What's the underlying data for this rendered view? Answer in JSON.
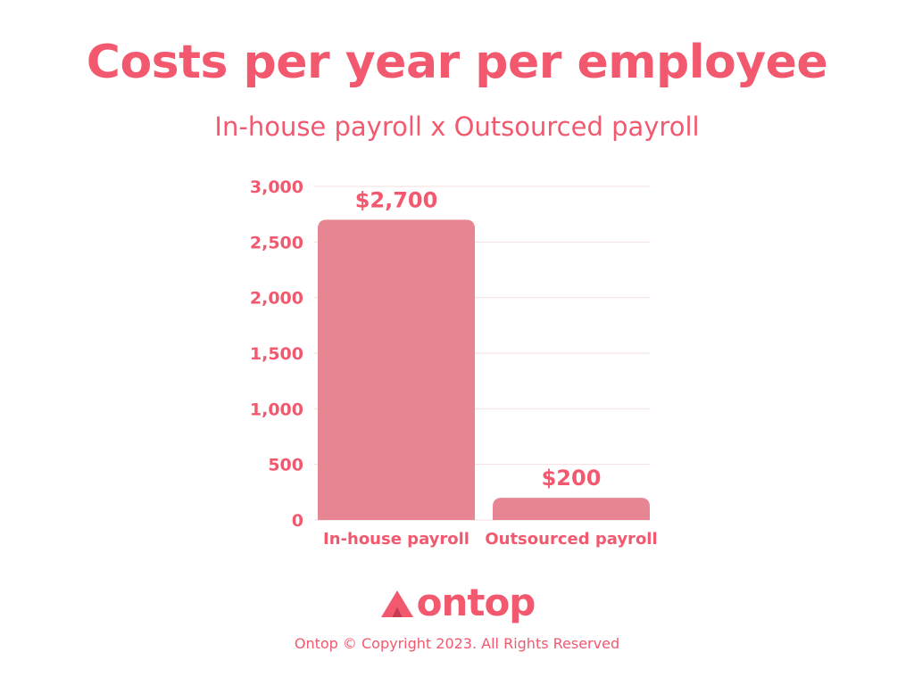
{
  "colors": {
    "brand": "#f2596f",
    "bar": "#e78692",
    "grid": "#f6dfe2"
  },
  "footer": {
    "logo_text": "ontop",
    "logo_icon": "ontop-logo-icon",
    "copyright": "Ontop © Copyright 2023. All Rights Reserved"
  },
  "chart_data": {
    "type": "bar",
    "title": "Costs per year per employee",
    "subtitle": "In-house payroll x Outsourced payroll",
    "xlabel": "",
    "ylabel": "",
    "categories": [
      "In-house payroll",
      "Outsourced payroll"
    ],
    "values": [
      2700,
      200
    ],
    "data_labels": [
      "$2,700",
      "$200"
    ],
    "ylim": [
      0,
      3000
    ],
    "yticks": [
      0,
      500,
      1000,
      1500,
      2000,
      2500,
      3000
    ],
    "ytick_labels": [
      "0",
      "500",
      "1,000",
      "1,500",
      "2,000",
      "2,500",
      "3,000"
    ],
    "grid": true,
    "legend": "none"
  }
}
